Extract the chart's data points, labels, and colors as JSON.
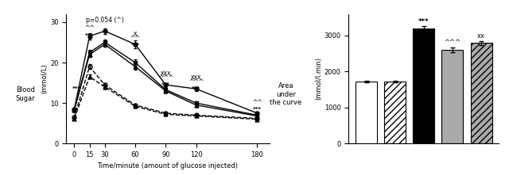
{
  "left": {
    "x": [
      0,
      15,
      30,
      60,
      90,
      120,
      180
    ],
    "series": {
      "solid_circle": [
        8.5,
        26.5,
        27.8,
        24.5,
        14.5,
        13.5,
        7.5
      ],
      "solid_square": [
        8.3,
        22.5,
        25.0,
        20.0,
        13.3,
        10.0,
        7.0
      ],
      "solid_triangle": [
        8.3,
        22.0,
        24.5,
        19.0,
        13.0,
        9.5,
        6.8
      ],
      "open_circle": [
        6.5,
        19.0,
        14.5,
        9.5,
        7.5,
        7.0,
        6.2
      ],
      "open_triangle": [
        6.2,
        16.5,
        14.0,
        9.2,
        7.2,
        6.8,
        6.0
      ]
    },
    "errors": {
      "solid_circle": [
        0.4,
        0.8,
        0.7,
        0.9,
        0.5,
        0.5,
        0.3
      ],
      "solid_square": [
        0.4,
        0.7,
        0.6,
        0.8,
        0.5,
        0.4,
        0.3
      ],
      "solid_triangle": [
        0.4,
        0.7,
        0.6,
        0.8,
        0.5,
        0.4,
        0.3
      ],
      "open_circle": [
        0.3,
        0.6,
        0.5,
        0.4,
        0.3,
        0.3,
        0.2
      ],
      "open_triangle": [
        0.3,
        0.5,
        0.5,
        0.4,
        0.3,
        0.3,
        0.2
      ]
    },
    "xlabel": "Time/minute (amount of glucose injected)",
    "ylim": [
      0,
      32
    ],
    "yticks": [
      0,
      10,
      20,
      30
    ]
  },
  "right": {
    "values": [
      1720,
      1720,
      3200,
      2600,
      2800
    ],
    "errors": [
      25,
      25,
      55,
      65,
      55
    ],
    "colors": [
      "white",
      "white",
      "black",
      "#aaaaaa",
      "#aaaaaa"
    ],
    "hatches": [
      "",
      "////",
      "",
      "",
      "////"
    ],
    "edge_colors": [
      "black",
      "black",
      "black",
      "black",
      "black"
    ],
    "ylim": [
      0,
      3600
    ],
    "yticks": [
      0,
      1000,
      2000,
      3000
    ]
  }
}
